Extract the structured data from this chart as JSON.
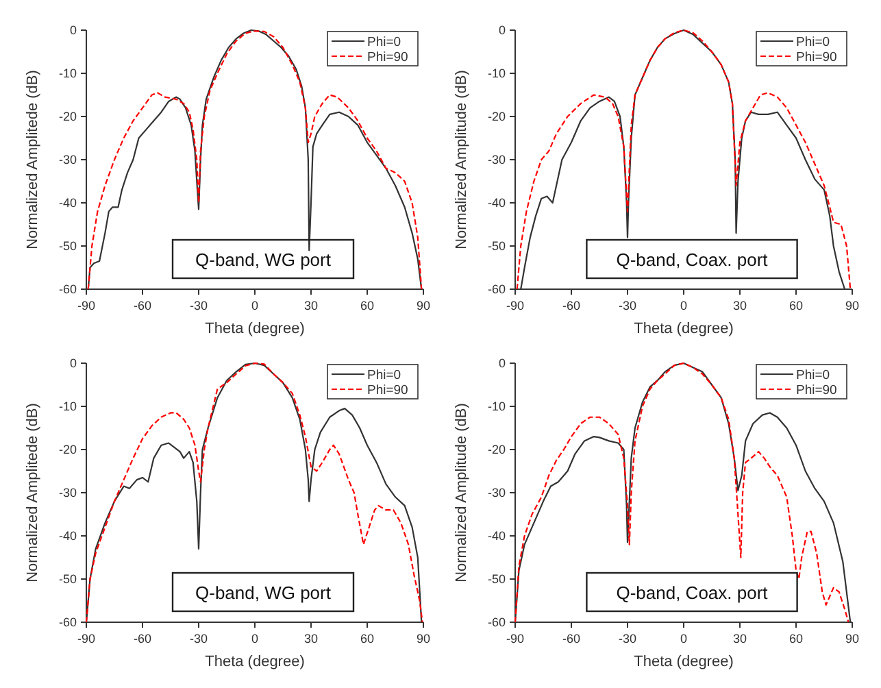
{
  "chart_data": [
    {
      "type": "line",
      "xlabel": "Theta (degree)",
      "ylabel": "Normalized Amplitede (dB)",
      "xlim": [
        -90,
        90
      ],
      "xticks": [
        -90,
        -60,
        -30,
        0,
        30,
        60,
        90
      ],
      "ylim": [
        -60,
        0
      ],
      "yticks": [
        -60,
        -50,
        -40,
        -30,
        -20,
        -10,
        0
      ],
      "legend": "top right",
      "annotations": [
        "Q-band, WG port"
      ],
      "series": [
        {
          "name": "Phi=0",
          "color": "#333333",
          "line_style": "solid",
          "x": [
            -89,
            -88,
            -86,
            -83,
            -80,
            -78,
            -76,
            -73,
            -71,
            -68,
            -65,
            -62,
            -58,
            -54,
            -50,
            -46,
            -42,
            -40,
            -37,
            -34,
            -32,
            -31,
            -30,
            -29,
            -28,
            -26,
            -22,
            -18,
            -14,
            -10,
            -6,
            -2,
            2,
            6,
            10,
            14,
            18,
            22,
            25,
            27,
            28.5,
            29,
            30,
            31,
            33,
            36,
            40,
            45,
            50,
            55,
            60,
            65,
            70,
            75,
            80,
            84,
            87,
            89
          ],
          "values": [
            -60,
            -55,
            -54,
            -53.5,
            -47,
            -42,
            -41,
            -41,
            -37,
            -33,
            -30,
            -25,
            -23,
            -21,
            -19,
            -16.5,
            -15.5,
            -16,
            -18,
            -22,
            -28,
            -35,
            -41.5,
            -30,
            -22,
            -16,
            -11,
            -7,
            -4,
            -2,
            -0.7,
            0,
            -0.2,
            -1,
            -2.5,
            -4,
            -6,
            -9,
            -13,
            -18,
            -30,
            -51,
            -40,
            -27,
            -24,
            -22,
            -19.5,
            -19,
            -20,
            -22,
            -26,
            -29,
            -32,
            -36,
            -41,
            -47,
            -53,
            -60
          ]
        },
        {
          "name": "Phi=90",
          "color": "#ff0000",
          "line_style": "dashed",
          "x": [
            -89,
            -87,
            -84,
            -80,
            -75,
            -70,
            -65,
            -60,
            -55,
            -52,
            -48,
            -42,
            -38,
            -35,
            -33,
            -31,
            -30,
            -29,
            -27,
            -24,
            -20,
            -15,
            -10,
            -5,
            0,
            5,
            10,
            15,
            20,
            24,
            27,
            28.5,
            30,
            32,
            36,
            40,
            44,
            50,
            55,
            60,
            65,
            70,
            75,
            80,
            84,
            87,
            89
          ],
          "values": [
            -60,
            -50,
            -42,
            -36,
            -30,
            -25,
            -21,
            -18,
            -15,
            -14.5,
            -15.5,
            -16,
            -17,
            -19,
            -23,
            -30,
            -40,
            -28,
            -20,
            -14,
            -10,
            -5.5,
            -2.5,
            -0.7,
            -0.2,
            -0.3,
            -1.5,
            -4,
            -8,
            -12,
            -18,
            -26,
            -24,
            -20,
            -17,
            -15,
            -15.5,
            -18,
            -21,
            -25,
            -28,
            -32,
            -33,
            -35,
            -40,
            -48,
            -60
          ]
        }
      ]
    },
    {
      "type": "line",
      "xlabel": "Theta (degree)",
      "ylabel": "Normalized Amplitude (dB)",
      "xlim": [
        -90,
        90
      ],
      "xticks": [
        -90,
        -60,
        -30,
        0,
        30,
        60,
        90
      ],
      "ylim": [
        -60,
        0
      ],
      "yticks": [
        -60,
        -50,
        -40,
        -30,
        -20,
        -10,
        0
      ],
      "legend": "top right",
      "annotations": [
        "Q-band, Coax. port"
      ],
      "series": [
        {
          "name": "Phi=0",
          "color": "#333333",
          "line_style": "solid",
          "x": [
            -87,
            -85,
            -82,
            -79,
            -76,
            -73,
            -70,
            -68,
            -65,
            -60,
            -55,
            -50,
            -45,
            -40,
            -37,
            -34,
            -32,
            -30.5,
            -30,
            -29.5,
            -28,
            -26,
            -22,
            -18,
            -14,
            -10,
            -5,
            0,
            5,
            10,
            15,
            20,
            24,
            26,
            27.5,
            28,
            29,
            31,
            33,
            36,
            40,
            45,
            50,
            55,
            60,
            65,
            70,
            75,
            78,
            80,
            83,
            86
          ],
          "values": [
            -60,
            -55,
            -48,
            -43,
            -39,
            -38.5,
            -40,
            -36,
            -30,
            -26,
            -21,
            -18,
            -16.5,
            -15.5,
            -16.5,
            -20,
            -27,
            -40,
            -48,
            -40,
            -25,
            -15,
            -11,
            -7,
            -4,
            -2,
            -0.8,
            0,
            -1,
            -3,
            -5,
            -8,
            -12,
            -17,
            -30,
            -47,
            -35,
            -25,
            -21,
            -19,
            -19.5,
            -19.5,
            -19,
            -22,
            -25,
            -30,
            -34.5,
            -37,
            -43,
            -50,
            -56,
            -60
          ]
        },
        {
          "name": "Phi=90",
          "color": "#ff0000",
          "line_style": "dashed",
          "x": [
            -89,
            -87,
            -84,
            -80,
            -76,
            -72,
            -68,
            -62,
            -55,
            -48,
            -42,
            -38,
            -35,
            -32,
            -30,
            -29,
            -28,
            -26,
            -22,
            -18,
            -14,
            -10,
            -5,
            0,
            5,
            10,
            15,
            20,
            24,
            26,
            28,
            30,
            33,
            37,
            41,
            45,
            50,
            55,
            60,
            65,
            70,
            75,
            78,
            80,
            84,
            87,
            89
          ],
          "values": [
            -60,
            -50,
            -42,
            -35,
            -30,
            -28,
            -24,
            -20,
            -17,
            -15,
            -15.5,
            -17,
            -20,
            -27,
            -42,
            -32,
            -22,
            -15,
            -11,
            -7,
            -4,
            -2,
            -0.6,
            0,
            -0.6,
            -2.5,
            -5,
            -8,
            -12,
            -17,
            -36,
            -26,
            -21,
            -18,
            -15,
            -14.5,
            -15.5,
            -18,
            -22,
            -26,
            -31,
            -36,
            -41,
            -44.5,
            -45,
            -50,
            -60
          ]
        }
      ]
    },
    {
      "type": "line",
      "xlabel": "Theta (degree)",
      "ylabel": "Normalized Amplitede (dB)",
      "xlim": [
        -90,
        90
      ],
      "xticks": [
        -90,
        -60,
        -30,
        0,
        30,
        60,
        90
      ],
      "ylim": [
        -60,
        0
      ],
      "yticks": [
        -60,
        -50,
        -40,
        -30,
        -20,
        -10,
        0
      ],
      "legend": "top right",
      "annotations": [
        "Q-band, WG port"
      ],
      "series": [
        {
          "name": "Phi=0",
          "color": "#333333",
          "line_style": "solid",
          "x": [
            -90,
            -88,
            -85,
            -80,
            -75,
            -70,
            -67,
            -63,
            -60,
            -57,
            -54,
            -50,
            -46,
            -43,
            -40,
            -38,
            -35,
            -33,
            -31,
            -30,
            -29,
            -28,
            -25,
            -20,
            -15,
            -10,
            -5,
            0,
            5,
            10,
            15,
            20,
            24,
            27,
            28.5,
            29,
            30,
            32,
            35,
            40,
            45,
            48,
            52,
            56,
            60,
            65,
            70,
            75,
            80,
            84,
            87,
            89
          ],
          "values": [
            -60,
            -50,
            -43,
            -37,
            -32,
            -28.5,
            -29,
            -27,
            -26.5,
            -27.5,
            -22,
            -19,
            -18.5,
            -19.5,
            -20.5,
            -22,
            -20.5,
            -23,
            -32,
            -43,
            -30,
            -20,
            -15,
            -8,
            -4,
            -2,
            -0.3,
            0,
            -0.5,
            -2.5,
            -4.5,
            -8,
            -13,
            -20,
            -27,
            -32,
            -27,
            -20,
            -16,
            -12.5,
            -11,
            -10.5,
            -12,
            -15,
            -19,
            -23,
            -28,
            -31,
            -33,
            -38,
            -45,
            -60
          ]
        },
        {
          "name": "Phi=90",
          "color": "#ff0000",
          "line_style": "dashed",
          "x": [
            -90,
            -88,
            -85,
            -80,
            -75,
            -70,
            -65,
            -60,
            -55,
            -50,
            -45,
            -42,
            -38,
            -35,
            -32,
            -30,
            -29,
            -27,
            -25,
            -20,
            -15,
            -10,
            -5,
            0,
            5,
            10,
            15,
            20,
            24,
            27,
            30,
            33,
            36,
            40,
            42,
            45,
            50,
            53,
            55,
            58,
            61,
            64,
            66,
            70,
            74,
            78,
            82,
            85,
            88,
            89.5
          ],
          "values": [
            -60,
            -50,
            -44,
            -38,
            -32,
            -27,
            -22,
            -17.5,
            -14.5,
            -12.5,
            -11.5,
            -11.5,
            -13,
            -15,
            -19,
            -25,
            -27.5,
            -20,
            -15,
            -6,
            -4.5,
            -2.5,
            -0.6,
            0,
            -0.2,
            -2.5,
            -4.5,
            -7,
            -12,
            -17,
            -24,
            -25,
            -23,
            -20,
            -19,
            -21,
            -27,
            -30,
            -35,
            -42,
            -38,
            -34,
            -33,
            -34,
            -34,
            -37,
            -42,
            -49,
            -55,
            -60
          ]
        }
      ]
    },
    {
      "type": "line",
      "xlabel": "Theta (degree)",
      "ylabel": "Normalized Amplitude (dB)",
      "xlim": [
        -90,
        90
      ],
      "xticks": [
        -90,
        -60,
        -30,
        0,
        30,
        60,
        90
      ],
      "ylim": [
        -60,
        0
      ],
      "yticks": [
        -60,
        -50,
        -40,
        -30,
        -20,
        -10,
        0
      ],
      "legend": "top right",
      "annotations": [
        "Q-band, Coax. port"
      ],
      "series": [
        {
          "name": "Phi=0",
          "color": "#333333",
          "line_style": "solid",
          "x": [
            -90,
            -88,
            -85,
            -80,
            -75,
            -71,
            -67,
            -62,
            -58,
            -53,
            -48,
            -45,
            -40,
            -35,
            -32,
            -30.5,
            -30,
            -29,
            -28,
            -26,
            -22,
            -18,
            -14,
            -10,
            -5,
            0,
            5,
            10,
            15,
            20,
            24,
            27,
            29,
            31,
            33,
            37,
            42,
            46,
            50,
            55,
            60,
            65,
            70,
            75,
            80,
            85,
            89
          ],
          "values": [
            -60,
            -48,
            -42,
            -37,
            -32,
            -28.5,
            -27.5,
            -25,
            -21,
            -18,
            -17,
            -17.2,
            -18,
            -18.5,
            -20,
            -33,
            -41.5,
            -32,
            -22,
            -15,
            -9,
            -5.5,
            -4,
            -2,
            -0.5,
            0,
            -1,
            -2,
            -5,
            -8,
            -14,
            -22,
            -29.5,
            -26,
            -18,
            -14,
            -12,
            -11.5,
            -12.5,
            -15,
            -19,
            -25,
            -29,
            -32,
            -37,
            -46,
            -60
          ]
        },
        {
          "name": "Phi=90",
          "color": "#ff0000",
          "line_style": "dashed",
          "x": [
            -90,
            -88,
            -85,
            -81,
            -76,
            -72,
            -68,
            -64,
            -60,
            -55,
            -50,
            -45,
            -40,
            -35,
            -32,
            -30,
            -29,
            -28,
            -26,
            -22,
            -18,
            -14,
            -10,
            -5,
            0,
            5,
            10,
            15,
            20,
            24,
            27,
            29,
            30.5,
            31.5,
            33,
            36,
            40,
            43,
            46,
            50,
            55,
            58,
            60,
            61.5,
            63,
            66,
            68,
            71,
            74,
            76,
            78,
            80,
            83,
            86,
            88
          ],
          "values": [
            -60,
            -47,
            -40,
            -35,
            -31,
            -26,
            -22.5,
            -20,
            -17,
            -14,
            -12.5,
            -12.5,
            -14,
            -16.5,
            -22,
            -33,
            -42,
            -30,
            -18,
            -10,
            -6,
            -4,
            -2.5,
            -0.5,
            0,
            -1,
            -2.5,
            -5,
            -8,
            -13,
            -22,
            -35,
            -45,
            -30,
            -23,
            -22,
            -20.5,
            -22,
            -24,
            -26,
            -31,
            -40,
            -48,
            -50,
            -45,
            -39,
            -39,
            -44,
            -53,
            -56,
            -54,
            -52,
            -53,
            -57,
            -60
          ]
        }
      ]
    }
  ]
}
